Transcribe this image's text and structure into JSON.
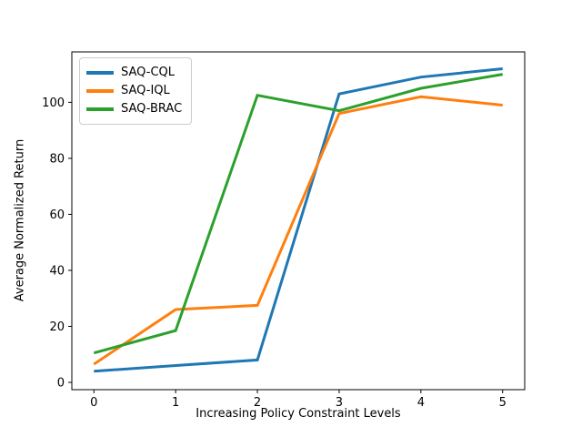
{
  "chart_data": {
    "type": "line",
    "x": [
      0,
      1,
      2,
      3,
      4,
      5
    ],
    "series": [
      {
        "name": "SAQ-CQL",
        "color": "#1f77b4",
        "values": [
          4,
          6,
          8,
          103,
          109,
          112
        ]
      },
      {
        "name": "SAQ-IQL",
        "color": "#ff7f0e",
        "values": [
          6.5,
          26,
          27.5,
          96,
          102,
          99
        ]
      },
      {
        "name": "SAQ-BRAC",
        "color": "#2ca02c",
        "values": [
          10.5,
          18.5,
          102.5,
          97,
          105,
          110
        ]
      }
    ],
    "title": "",
    "xlabel": "Increasing Policy Constraint Levels",
    "ylabel": "Average Normalized Return",
    "x_ticks": [
      0,
      1,
      2,
      3,
      4,
      5
    ],
    "y_ticks": [
      0,
      20,
      40,
      60,
      80,
      100
    ],
    "xlim": [
      -0.27,
      5.27
    ],
    "ylim": [
      -2.6,
      118
    ],
    "line_width": 3,
    "grid": false,
    "legend_position": "upper left",
    "background_color": "#ffffff",
    "axis_color": "#000000",
    "legend_border_color": "#cccccc"
  }
}
